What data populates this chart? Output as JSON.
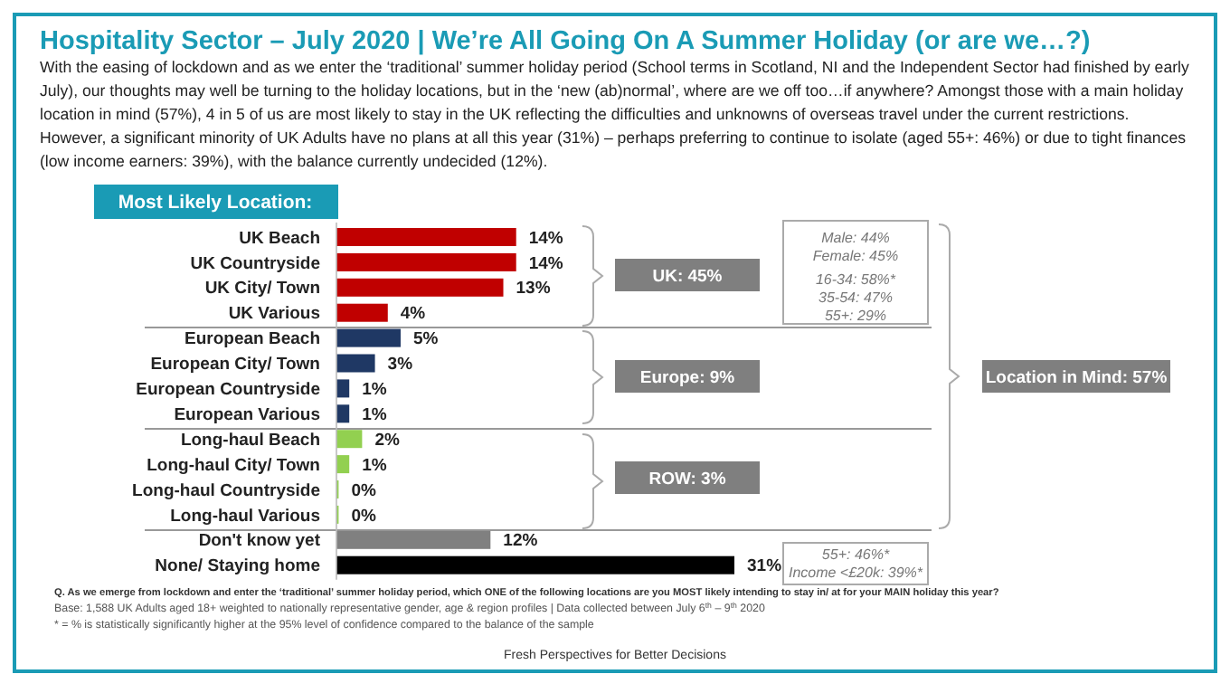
{
  "chart_data": {
    "type": "bar",
    "orientation": "horizontal",
    "title": "Hospitality Sector – July 2020 | We’re All Going On A Summer Holiday (or are we…?)",
    "subtitle": "With the easing of lockdown and as we enter the ‘traditional’ summer holiday period (School terms in Scotland, NI and the Independent Sector had finished by early July), our thoughts may well be turning to the holiday locations, but in the ‘new (ab)normal’, where are we off too…if anywhere? Amongst those with a main holiday location in mind (57%), 4 in 5 of us are most likely to stay in the UK reflecting the difficulties and unknowns of overseas travel under the current restrictions. However, a significant minority of UK Adults have no plans at all this year (31%) – perhaps preferring to continue to isolate (aged 55+: 46%) or due to tight finances (low income earners: 39%), with the balance currently undecided (12%).",
    "categories": [
      "UK Beach",
      "UK Countryside",
      "UK City/ Town",
      "UK Various",
      "European Beach",
      "European City/ Town",
      "European Countryside",
      "European Various",
      "Long-haul Beach",
      "Long-haul City/ Town",
      "Long-haul Countryside",
      "Long-haul Various",
      "Don't know yet",
      "None/ Staying home"
    ],
    "values": [
      14,
      14,
      13,
      4,
      5,
      3,
      1,
      1,
      2,
      1,
      0,
      0,
      12,
      31
    ],
    "value_labels": [
      "14%",
      "14%",
      "13%",
      "4%",
      "5%",
      "3%",
      "1%",
      "1%",
      "2%",
      "1%",
      "0%",
      "0%",
      "12%",
      "31%"
    ],
    "colors": [
      "#c00000",
      "#c00000",
      "#c00000",
      "#c00000",
      "#1f3864",
      "#1f3864",
      "#1f3864",
      "#1f3864",
      "#92d050",
      "#92d050",
      "#92d050",
      "#92d050",
      "#808080",
      "#000000"
    ],
    "annotations": [
      "Most Likely Location:",
      "UK: 45%",
      "Europe: 9%",
      "ROW: 3%",
      "Location in Mind: 57%",
      "Male: 44%",
      "Female: 45%",
      "16-34: 58%*",
      "35-54: 47%",
      "55+: 29%",
      "55+: 46%*",
      "Income <£20k: 39%*",
      "Q. As we emerge from lockdown and enter the ‘traditional’ summer holiday period, which ONE of the following locations are you MOST likely intending to stay in/ at for your MAIN holiday this year?",
      "Base: 1,588 UK Adults aged 18+ weighted to nationally representative gender, age & region profiles | Data collected between July 6$^{th}$ – 9$^{th}$ 2020",
      "* = % is statistically significantly higher at the 95% level of confidence compared to the balance of the sample",
      "Fresh Perspectives for Better Decisions"
    ]
  }
}
